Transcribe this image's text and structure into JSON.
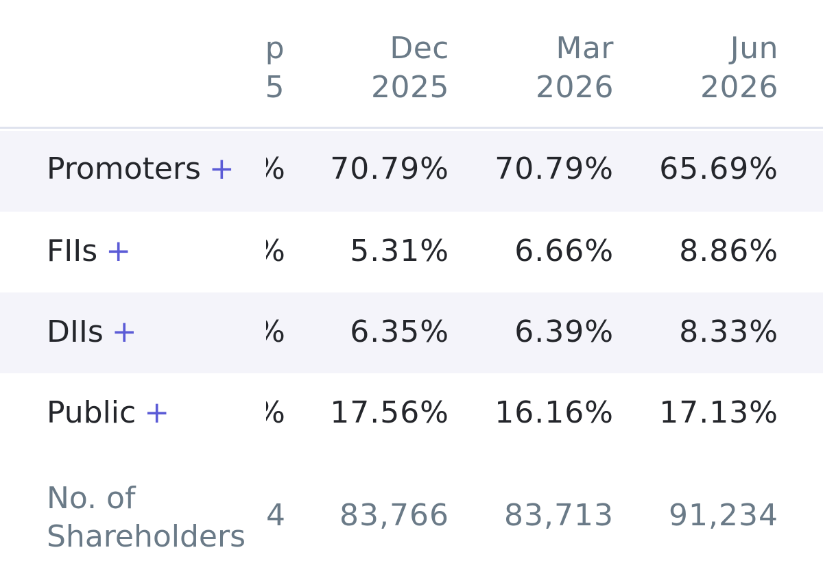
{
  "header": {
    "cut_col": "p\n5",
    "col1": "Dec\n2025",
    "col2": "Mar\n2026",
    "col3": "Jun\n2026"
  },
  "rows": [
    {
      "label": "Promoters",
      "plus": "+",
      "cut": "%",
      "v1": "70.79%",
      "v2": "70.79%",
      "v3": "65.69%"
    },
    {
      "label": "FIIs",
      "plus": "+",
      "cut": "%",
      "v1": "5.31%",
      "v2": "6.66%",
      "v3": "8.86%"
    },
    {
      "label": "DIIs",
      "plus": "+",
      "cut": "%",
      "v1": "6.35%",
      "v2": "6.39%",
      "v3": "8.33%"
    },
    {
      "label": "Public",
      "plus": "+",
      "cut": "%",
      "v1": "17.56%",
      "v2": "16.16%",
      "v3": "17.13%"
    }
  ],
  "shareholders": {
    "label": "No. of\nShareholders",
    "cut": "4",
    "v1": "83,766",
    "v2": "83,713",
    "v3": "91,234"
  },
  "colors": {
    "text": "#24262b",
    "muted": "#6a7a87",
    "accent": "#5b5bd6",
    "row_shade": "#f4f4fa",
    "divider": "#dfe3ee"
  }
}
